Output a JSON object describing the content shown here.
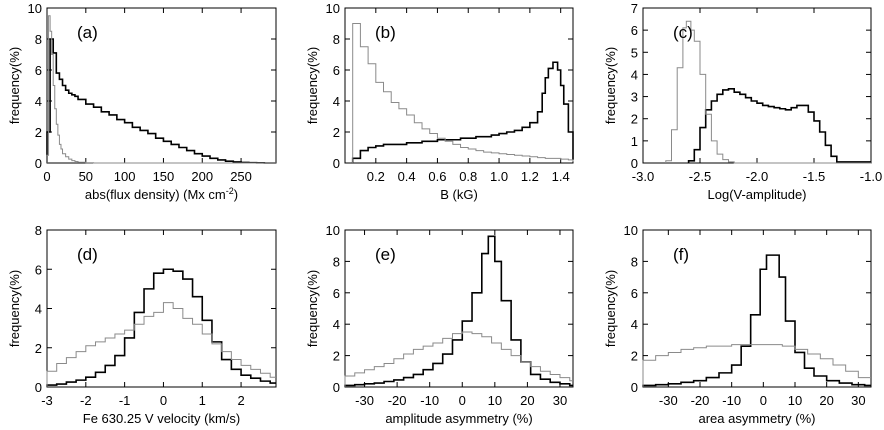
{
  "chart_data": [
    {
      "type": "histogram",
      "panel_label": "(a)",
      "xlabel": "abs(flux density) (Mx cm",
      "xlabel_sup": "-2",
      "xlabel_suffix": ")",
      "ylabel": "frequency(%)",
      "xlim": [
        0,
        295
      ],
      "ylim": [
        0,
        10
      ],
      "xticks": [
        0,
        50,
        100,
        150,
        200,
        250
      ],
      "yticks": [
        0,
        2,
        4,
        6,
        8,
        10
      ],
      "series": [
        {
          "style": "black",
          "x": [
            0,
            4,
            8,
            12,
            16,
            20,
            24,
            28,
            32,
            36,
            40,
            50,
            60,
            70,
            80,
            90,
            100,
            110,
            120,
            130,
            140,
            150,
            160,
            170,
            180,
            190,
            200,
            210,
            220,
            230,
            240,
            250,
            260,
            270,
            280,
            295
          ],
          "y": [
            2.0,
            8.0,
            7.1,
            5.8,
            5.4,
            5.0,
            4.7,
            4.5,
            4.4,
            4.3,
            4.1,
            3.8,
            3.6,
            3.3,
            3.1,
            2.8,
            2.6,
            2.3,
            2.1,
            1.9,
            1.6,
            1.4,
            1.2,
            1.0,
            0.8,
            0.6,
            0.45,
            0.3,
            0.2,
            0.12,
            0.07,
            0.04,
            0.02,
            0.01,
            0.0,
            0.0
          ]
        },
        {
          "style": "gray",
          "x": [
            0,
            2,
            4,
            6,
            8,
            10,
            12,
            14,
            16,
            18,
            20,
            24,
            28,
            32,
            36,
            40,
            50,
            60,
            295
          ],
          "y": [
            0.5,
            9.5,
            8.5,
            7.0,
            5.0,
            3.5,
            2.5,
            1.8,
            1.2,
            0.9,
            0.6,
            0.4,
            0.25,
            0.15,
            0.1,
            0.05,
            0.02,
            0.0,
            0.0
          ]
        }
      ]
    },
    {
      "type": "histogram",
      "panel_label": "(b)",
      "xlabel": "B (kG)",
      "ylabel": "frequency(%)",
      "xlim": [
        0.0,
        1.48
      ],
      "ylim": [
        0,
        10
      ],
      "xticks": [
        0.2,
        0.4,
        0.6,
        0.8,
        1.0,
        1.2,
        1.4
      ],
      "xtick_labels": [
        "0.2",
        "0.4",
        "0.6",
        "0.8",
        "1.0",
        "1.2",
        "1.4"
      ],
      "yticks": [
        0,
        2,
        4,
        6,
        8,
        10
      ],
      "series": [
        {
          "style": "black",
          "x": [
            0.05,
            0.1,
            0.15,
            0.2,
            0.25,
            0.3,
            0.35,
            0.4,
            0.45,
            0.5,
            0.55,
            0.6,
            0.65,
            0.7,
            0.75,
            0.8,
            0.85,
            0.9,
            0.95,
            1.0,
            1.05,
            1.1,
            1.15,
            1.2,
            1.25,
            1.28,
            1.3,
            1.32,
            1.35,
            1.38,
            1.4,
            1.42,
            1.45,
            1.48
          ],
          "y": [
            0.3,
            0.8,
            1.0,
            1.1,
            1.2,
            1.2,
            1.2,
            1.3,
            1.3,
            1.4,
            1.4,
            1.5,
            1.5,
            1.5,
            1.6,
            1.6,
            1.7,
            1.7,
            1.8,
            1.9,
            2.0,
            2.1,
            2.3,
            2.6,
            3.3,
            4.5,
            5.5,
            6.1,
            6.5,
            6.0,
            5.0,
            3.8,
            2.0,
            0.2
          ]
        },
        {
          "style": "gray",
          "x": [
            0.05,
            0.1,
            0.15,
            0.2,
            0.25,
            0.3,
            0.35,
            0.4,
            0.45,
            0.5,
            0.55,
            0.6,
            0.65,
            0.7,
            0.75,
            0.8,
            0.85,
            0.9,
            0.95,
            1.0,
            1.05,
            1.1,
            1.15,
            1.2,
            1.25,
            1.3,
            1.35,
            1.4,
            1.45,
            1.48
          ],
          "y": [
            9.0,
            7.5,
            6.4,
            5.2,
            4.6,
            3.9,
            3.5,
            3.1,
            2.6,
            2.2,
            1.9,
            1.6,
            1.4,
            1.2,
            1.0,
            0.9,
            0.8,
            0.7,
            0.65,
            0.6,
            0.55,
            0.5,
            0.45,
            0.4,
            0.35,
            0.3,
            0.3,
            0.25,
            0.2,
            0.1
          ]
        }
      ]
    },
    {
      "type": "histogram",
      "panel_label": "(c)",
      "xlabel": "Log(V-amplitude)",
      "ylabel": "frequency(%)",
      "xlim": [
        -3.0,
        -1.0
      ],
      "ylim": [
        0,
        7
      ],
      "xticks": [
        -3.0,
        -2.5,
        -2.0,
        -1.5,
        -1.0
      ],
      "xtick_labels": [
        "-3.0",
        "-2.5",
        "-2.0",
        "-1.5",
        "-1.0"
      ],
      "yticks": [
        0,
        1,
        2,
        3,
        4,
        5,
        6,
        7
      ],
      "series": [
        {
          "style": "black",
          "x": [
            -2.6,
            -2.55,
            -2.5,
            -2.45,
            -2.4,
            -2.35,
            -2.3,
            -2.25,
            -2.2,
            -2.15,
            -2.1,
            -2.05,
            -2.0,
            -1.95,
            -1.9,
            -1.85,
            -1.8,
            -1.75,
            -1.7,
            -1.65,
            -1.6,
            -1.55,
            -1.5,
            -1.45,
            -1.4,
            -1.35,
            -1.3
          ],
          "y": [
            0.1,
            0.6,
            1.6,
            2.4,
            2.8,
            3.1,
            3.3,
            3.35,
            3.2,
            3.1,
            2.95,
            2.8,
            2.7,
            2.6,
            2.55,
            2.5,
            2.45,
            2.4,
            2.5,
            2.6,
            2.6,
            2.3,
            1.9,
            1.4,
            0.8,
            0.3,
            0.05
          ]
        },
        {
          "style": "gray",
          "x": [
            -2.8,
            -2.75,
            -2.7,
            -2.65,
            -2.62,
            -2.58,
            -2.55,
            -2.5,
            -2.45,
            -2.4,
            -2.35,
            -2.3,
            -2.25,
            -2.2
          ],
          "y": [
            0.1,
            1.5,
            4.3,
            6.1,
            6.4,
            6.0,
            5.5,
            4.0,
            2.2,
            1.0,
            0.4,
            0.15,
            0.05,
            0.0
          ]
        }
      ]
    },
    {
      "type": "histogram",
      "panel_label": "(d)",
      "xlabel": "Fe 630.25 V velocity (km/s)",
      "ylabel": "frequency(%)",
      "xlim": [
        -3,
        2.9
      ],
      "ylim": [
        0,
        8
      ],
      "xticks": [
        -3,
        -2,
        -1,
        0,
        1,
        2
      ],
      "yticks": [
        0,
        2,
        4,
        6,
        8
      ],
      "series": [
        {
          "style": "black",
          "x": [
            -3,
            -2.75,
            -2.5,
            -2.25,
            -2.0,
            -1.75,
            -1.5,
            -1.25,
            -1.0,
            -0.75,
            -0.5,
            -0.25,
            0,
            0.25,
            0.5,
            0.75,
            1.0,
            1.25,
            1.5,
            1.75,
            2.0,
            2.25,
            2.5,
            2.75
          ],
          "y": [
            0.1,
            0.15,
            0.25,
            0.35,
            0.5,
            0.75,
            1.1,
            1.6,
            2.5,
            3.8,
            5.0,
            5.8,
            6.0,
            5.9,
            5.5,
            4.6,
            3.4,
            2.3,
            1.4,
            0.9,
            0.6,
            0.45,
            0.3,
            0.2
          ]
        },
        {
          "style": "gray",
          "x": [
            -3,
            -2.75,
            -2.5,
            -2.25,
            -2.0,
            -1.75,
            -1.5,
            -1.25,
            -1.0,
            -0.75,
            -0.5,
            -0.25,
            0,
            0.25,
            0.5,
            0.75,
            1.0,
            1.25,
            1.5,
            1.75,
            2.0,
            2.25,
            2.5,
            2.75
          ],
          "y": [
            0.8,
            1.2,
            1.5,
            1.8,
            2.1,
            2.3,
            2.5,
            2.7,
            2.9,
            3.2,
            3.6,
            3.8,
            4.3,
            4.0,
            3.5,
            3.2,
            2.7,
            2.2,
            1.8,
            1.4,
            1.1,
            0.9,
            0.7,
            0.5
          ]
        }
      ]
    },
    {
      "type": "histogram",
      "panel_label": "(e)",
      "xlabel": "amplitude asymmetry (%)",
      "ylabel": "frequency(%)",
      "xlim": [
        -36,
        34
      ],
      "ylim": [
        0,
        10
      ],
      "xticks": [
        -30,
        -20,
        -10,
        0,
        10,
        20,
        30
      ],
      "yticks": [
        0,
        2,
        4,
        6,
        8,
        10
      ],
      "series": [
        {
          "style": "black",
          "x": [
            -36,
            -33,
            -30,
            -27,
            -24,
            -21,
            -18,
            -15,
            -12,
            -9,
            -6,
            -3,
            0,
            3,
            6,
            8,
            10,
            12,
            15,
            18,
            21,
            24,
            27,
            30,
            33
          ],
          "y": [
            0.1,
            0.15,
            0.2,
            0.25,
            0.35,
            0.45,
            0.6,
            0.8,
            1.1,
            1.5,
            2.1,
            3.0,
            4.2,
            6.0,
            8.5,
            9.6,
            8.0,
            5.5,
            3.0,
            1.6,
            0.8,
            0.5,
            0.3,
            0.2,
            0.1
          ]
        },
        {
          "style": "gray",
          "x": [
            -36,
            -33,
            -30,
            -27,
            -24,
            -21,
            -18,
            -15,
            -12,
            -9,
            -6,
            -3,
            0,
            3,
            6,
            9,
            12,
            15,
            18,
            21,
            24,
            27,
            30,
            33
          ],
          "y": [
            0.7,
            0.9,
            1.1,
            1.3,
            1.5,
            1.8,
            2.1,
            2.4,
            2.6,
            2.8,
            3.1,
            3.4,
            3.5,
            3.4,
            3.2,
            2.8,
            2.4,
            2.0,
            1.6,
            1.3,
            1.0,
            0.8,
            0.6,
            0.4
          ]
        }
      ]
    },
    {
      "type": "histogram",
      "panel_label": "(f)",
      "xlabel": "area asymmetry (%)",
      "ylabel": "frequency(%)",
      "xlim": [
        -38,
        34
      ],
      "ylim": [
        0,
        10
      ],
      "xticks": [
        -30,
        -20,
        -10,
        0,
        10,
        20,
        30
      ],
      "yticks": [
        0,
        2,
        4,
        6,
        8,
        10
      ],
      "series": [
        {
          "style": "black",
          "x": [
            -38,
            -34,
            -30,
            -26,
            -22,
            -18,
            -14,
            -10,
            -7,
            -4,
            -1,
            1,
            3,
            5,
            7,
            10,
            13,
            16,
            20,
            24,
            28,
            32
          ],
          "y": [
            0.1,
            0.15,
            0.2,
            0.3,
            0.4,
            0.6,
            0.9,
            1.4,
            2.6,
            4.6,
            7.5,
            8.4,
            8.4,
            7.0,
            4.2,
            2.2,
            1.2,
            0.7,
            0.4,
            0.25,
            0.15,
            0.1
          ]
        },
        {
          "style": "gray",
          "x": [
            -38,
            -34,
            -30,
            -26,
            -22,
            -18,
            -14,
            -10,
            -6,
            -2,
            2,
            6,
            10,
            14,
            18,
            22,
            26,
            30
          ],
          "y": [
            1.7,
            2.0,
            2.2,
            2.4,
            2.5,
            2.6,
            2.6,
            2.7,
            2.7,
            2.7,
            2.7,
            2.6,
            2.4,
            2.1,
            1.8,
            1.4,
            1.0,
            0.6
          ]
        }
      ]
    }
  ]
}
